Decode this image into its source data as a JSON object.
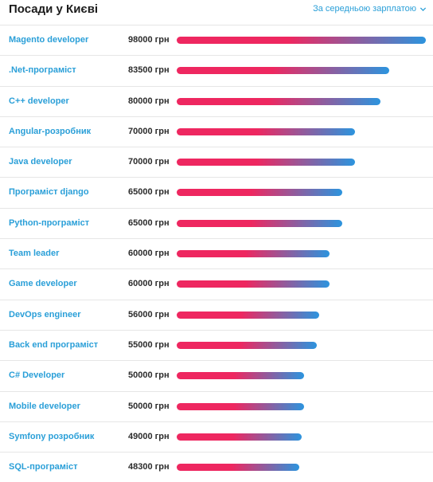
{
  "header": {
    "title": "Посади у Києві",
    "sort_label": "За середньою зарплатою"
  },
  "colors": {
    "bar_start": "#ee2760",
    "bar_end": "#2c94de",
    "link": "#2a9fd8"
  },
  "rows": [
    {
      "title": "Magento developer",
      "salary": "98000 грн",
      "value": 98000
    },
    {
      "title": ".Net-програміст",
      "salary": "83500 грн",
      "value": 83500
    },
    {
      "title": "C++ developer",
      "salary": "80000 грн",
      "value": 80000
    },
    {
      "title": "Angular-розробник",
      "salary": "70000 грн",
      "value": 70000
    },
    {
      "title": "Java developer",
      "salary": "70000 грн",
      "value": 70000
    },
    {
      "title": "Програміст django",
      "salary": "65000 грн",
      "value": 65000
    },
    {
      "title": "Python-програміст",
      "salary": "65000 грн",
      "value": 65000
    },
    {
      "title": "Team leader",
      "salary": "60000 грн",
      "value": 60000
    },
    {
      "title": "Game developer",
      "salary": "60000 грн",
      "value": 60000
    },
    {
      "title": "DevOps engineer",
      "salary": "56000 грн",
      "value": 56000
    },
    {
      "title": "Back end програміст",
      "salary": "55000 грн",
      "value": 55000
    },
    {
      "title": "C# Developer",
      "salary": "50000 грн",
      "value": 50000
    },
    {
      "title": "Mobile developer",
      "salary": "50000 грн",
      "value": 50000
    },
    {
      "title": "Symfony розробник",
      "salary": "49000 грн",
      "value": 49000
    },
    {
      "title": "SQL-програміст",
      "salary": "48300 грн",
      "value": 48300
    }
  ]
}
